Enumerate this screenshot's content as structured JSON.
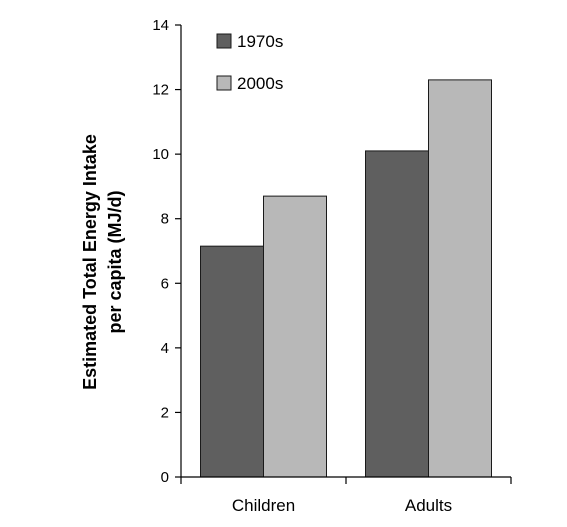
{
  "chart_data": {
    "type": "bar",
    "title": "",
    "xlabel": "",
    "ylabel_line1": "Estimated Total Energy Intake",
    "ylabel_line2": "per capita (MJ/d)",
    "ylim": [
      0,
      14
    ],
    "yticks": [
      0,
      2,
      4,
      6,
      8,
      10,
      12,
      14
    ],
    "categories": [
      "Children",
      "Adults"
    ],
    "series": [
      {
        "name": "1970s",
        "values": [
          7.15,
          10.1
        ],
        "color": "#5f5f5f"
      },
      {
        "name": "2000s",
        "values": [
          8.7,
          12.3
        ],
        "color": "#b8b8b8"
      }
    ],
    "legend": {
      "placement": "top-left"
    },
    "grid": false
  }
}
